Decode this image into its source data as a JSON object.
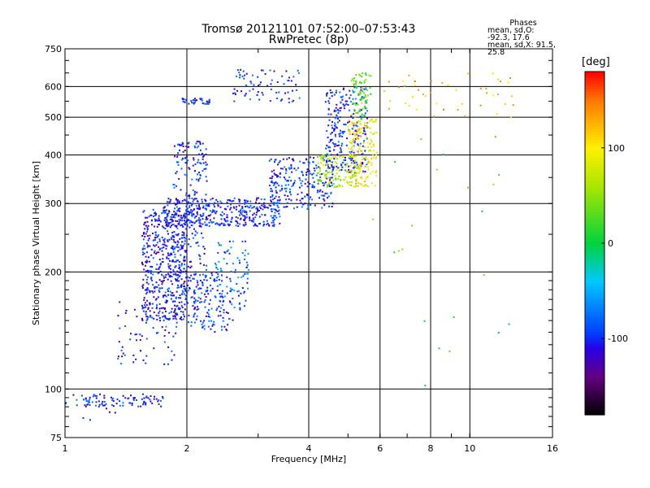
{
  "header": {
    "title": "Tromsø 20121101 07:52:00–07:53:43",
    "subtitle": "RwPretec (8p)"
  },
  "phases": {
    "heading": "Phases",
    "line_o": "mean, sd,O: -92.3, 17.6",
    "line_x": "mean, sd,X:  91.5, 25.8"
  },
  "colorbar": {
    "unit": "[deg]",
    "range": [
      -180,
      180
    ],
    "ticks": [
      100,
      0,
      -100
    ],
    "tick_labels": [
      "100",
      "0",
      "-100"
    ]
  },
  "colors": {
    "grid": "#000000",
    "background": "#ffffff"
  },
  "chart_data": {
    "type": "scatter",
    "title": "Tromsø 20121101 07:52:00–07:53:43",
    "subtitle": "RwPretec (8p)",
    "xlabel": "Frequency [MHz]",
    "ylabel": "Stationary phase Virtual Height [km]",
    "xscale": "log",
    "yscale": "log",
    "xlim": [
      1,
      16
    ],
    "ylim": [
      75,
      750
    ],
    "xticks": [
      1,
      2,
      4,
      6,
      8,
      10,
      16
    ],
    "xtick_labels": [
      "1",
      "2",
      "4",
      "6",
      "8",
      "10",
      "16"
    ],
    "yticks": [
      75,
      100,
      200,
      300,
      400,
      500,
      600,
      750
    ],
    "ytick_labels": [
      "75",
      "100",
      "200",
      "300",
      "400",
      "500",
      "600",
      "750"
    ],
    "grid": true,
    "color_by": "phase [deg]",
    "clusters": [
      {
        "x": [
          1.0,
          1.75
        ],
        "y": [
          90,
          97
        ],
        "phase": -100,
        "n": 90
      },
      {
        "x": [
          1.1,
          1.35
        ],
        "y": [
          80,
          98
        ],
        "phase": -110,
        "n": 12
      },
      {
        "x": [
          1.35,
          1.9
        ],
        "y": [
          115,
          170
        ],
        "phase": -100,
        "n": 70
      },
      {
        "x": [
          1.55,
          2.0
        ],
        "y": [
          150,
          290
        ],
        "phase": -105,
        "n": 520
      },
      {
        "x": [
          1.85,
          2.25
        ],
        "y": [
          160,
          440
        ],
        "phase": -100,
        "n": 260
      },
      {
        "x": [
          2.0,
          2.6
        ],
        "y": [
          140,
          200
        ],
        "phase": -95,
        "n": 120
      },
      {
        "x": [
          2.35,
          2.85
        ],
        "y": [
          160,
          240
        ],
        "phase": -80,
        "n": 90
      },
      {
        "x": [
          1.75,
          3.4
        ],
        "y": [
          262,
          310
        ],
        "phase": -100,
        "n": 380
      },
      {
        "x": [
          1.95,
          2.3
        ],
        "y": [
          540,
          560
        ],
        "phase": -100,
        "n": 35
      },
      {
        "x": [
          2.6,
          3.8
        ],
        "y": [
          545,
          665
        ],
        "phase": -100,
        "n": 75
      },
      {
        "x": [
          3.2,
          4.6
        ],
        "y": [
          290,
          395
        ],
        "phase": -95,
        "n": 240
      },
      {
        "x": [
          4.2,
          5.3
        ],
        "y": [
          330,
          400
        ],
        "phase": 60,
        "n": 130
      },
      {
        "x": [
          4.4,
          5.6
        ],
        "y": [
          360,
          600
        ],
        "phase": -95,
        "n": 260
      },
      {
        "x": [
          5.0,
          5.9
        ],
        "y": [
          330,
          500
        ],
        "phase": 100,
        "n": 170
      },
      {
        "x": [
          5.1,
          5.7
        ],
        "y": [
          500,
          650
        ],
        "phase": 30,
        "n": 70
      },
      {
        "x": [
          5.8,
          13
        ],
        "y": [
          500,
          650
        ],
        "phase": 120,
        "n": 45
      },
      {
        "x": [
          5.5,
          13
        ],
        "y": [
          95,
          450
        ],
        "phase": 20,
        "n": 22
      }
    ]
  }
}
